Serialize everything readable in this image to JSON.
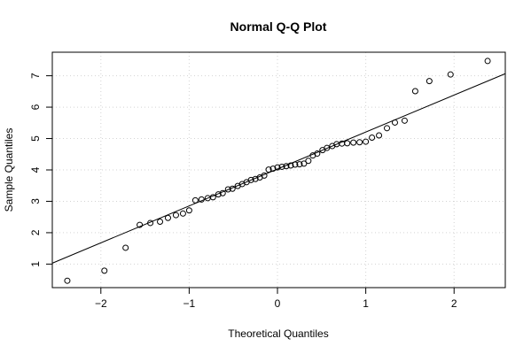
{
  "chart_data": {
    "type": "scatter",
    "title": "Normal Q-Q Plot",
    "xlabel": "Theoretical Quantiles",
    "ylabel": "Sample Quantiles",
    "xlim": [
      -2.55,
      2.58
    ],
    "ylim": [
      0.25,
      7.75
    ],
    "x_ticks": [
      -2,
      -1,
      0,
      1,
      2
    ],
    "x_tick_labels": [
      "−2",
      "−1",
      "0",
      "1",
      "2"
    ],
    "y_ticks": [
      1,
      2,
      3,
      4,
      5,
      6,
      7
    ],
    "y_tick_labels": [
      "1",
      "2",
      "3",
      "4",
      "5",
      "6",
      "7"
    ],
    "grid": true,
    "reference_line": {
      "slope": 1.177,
      "intercept": 4.03
    },
    "points": [
      [
        -2.38,
        0.47
      ],
      [
        -1.96,
        0.79
      ],
      [
        -1.72,
        1.52
      ],
      [
        -1.56,
        2.25
      ],
      [
        -1.44,
        2.31
      ],
      [
        -1.33,
        2.35
      ],
      [
        -1.24,
        2.47
      ],
      [
        -1.15,
        2.56
      ],
      [
        -1.07,
        2.61
      ],
      [
        -1.0,
        2.71
      ],
      [
        -0.93,
        3.03
      ],
      [
        -0.86,
        3.06
      ],
      [
        -0.79,
        3.1
      ],
      [
        -0.73,
        3.13
      ],
      [
        -0.67,
        3.22
      ],
      [
        -0.62,
        3.26
      ],
      [
        -0.56,
        3.38
      ],
      [
        -0.51,
        3.4
      ],
      [
        -0.45,
        3.49
      ],
      [
        -0.4,
        3.55
      ],
      [
        -0.35,
        3.61
      ],
      [
        -0.3,
        3.68
      ],
      [
        -0.25,
        3.71
      ],
      [
        -0.2,
        3.76
      ],
      [
        -0.15,
        3.82
      ],
      [
        -0.1,
        4.01
      ],
      [
        -0.05,
        4.04
      ],
      [
        0.0,
        4.08
      ],
      [
        0.05,
        4.1
      ],
      [
        0.1,
        4.12
      ],
      [
        0.15,
        4.14
      ],
      [
        0.2,
        4.17
      ],
      [
        0.25,
        4.18
      ],
      [
        0.3,
        4.2
      ],
      [
        0.35,
        4.29
      ],
      [
        0.4,
        4.46
      ],
      [
        0.45,
        4.52
      ],
      [
        0.51,
        4.63
      ],
      [
        0.56,
        4.7
      ],
      [
        0.62,
        4.76
      ],
      [
        0.67,
        4.82
      ],
      [
        0.73,
        4.84
      ],
      [
        0.79,
        4.85
      ],
      [
        0.86,
        4.87
      ],
      [
        0.93,
        4.88
      ],
      [
        1.0,
        4.9
      ],
      [
        1.07,
        5.03
      ],
      [
        1.15,
        5.1
      ],
      [
        1.24,
        5.33
      ],
      [
        1.33,
        5.51
      ],
      [
        1.44,
        5.57
      ],
      [
        1.56,
        6.51
      ],
      [
        1.72,
        6.83
      ],
      [
        1.96,
        7.04
      ],
      [
        2.38,
        7.47
      ]
    ]
  }
}
